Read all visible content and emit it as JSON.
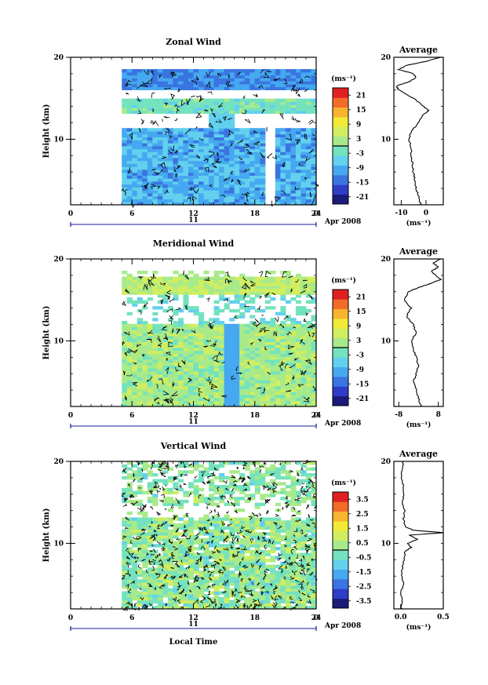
{
  "figure": {
    "panels": [
      {
        "title": "Zonal Wind",
        "ylabel": "Height (km)",
        "yticks": [
          "10",
          "20"
        ],
        "xticks": [
          "0",
          "6",
          "12",
          "18",
          "24",
          "0"
        ],
        "day_label": "11",
        "date_label": "Apr 2008",
        "colorbar": {
          "unit": "(ms⁻¹)",
          "labels": [
            "21",
            "15",
            "9",
            "3",
            "-3",
            "-9",
            "-15",
            "-21"
          ]
        },
        "profile": {
          "title": "Average",
          "xticks": [
            "-10",
            "0"
          ],
          "unit": "(ms⁻¹)",
          "yticks": [
            "10",
            "20"
          ]
        }
      },
      {
        "title": "Meridional Wind",
        "ylabel": "Height (km)",
        "yticks": [
          "10",
          "20"
        ],
        "xticks": [
          "0",
          "6",
          "12",
          "18",
          "24",
          "0"
        ],
        "day_label": "11",
        "date_label": "Apr 2008",
        "colorbar": {
          "unit": "(ms⁻¹)",
          "labels": [
            "21",
            "15",
            "9",
            "3",
            "-3",
            "-9",
            "-15",
            "-21"
          ]
        },
        "profile": {
          "title": "Average",
          "xticks": [
            "-8",
            "8"
          ],
          "unit": "(ms⁻¹)",
          "yticks": [
            "10",
            "20"
          ]
        }
      },
      {
        "title": "Vertical Wind",
        "ylabel": "Height (km)",
        "yticks": [
          "10",
          "20"
        ],
        "xticks": [
          "0",
          "6",
          "12",
          "18",
          "24",
          "0"
        ],
        "day_label": "11",
        "date_label": "Apr 2008",
        "xlabel": "Local Time",
        "colorbar": {
          "unit": "(ms⁻¹)",
          "labels": [
            "3.5",
            "2.5",
            "1.5",
            "0.5",
            "-0.5",
            "-1.5",
            "-2.5",
            "-3.5"
          ]
        },
        "profile": {
          "title": "Average",
          "xticks": [
            "0.0",
            "0.5"
          ],
          "unit": "(ms⁻¹)",
          "yticks": [
            "10",
            "20"
          ]
        }
      }
    ],
    "colors": {
      "scale": [
        "#1a1a7a",
        "#2e3cc8",
        "#3a74e0",
        "#46a8f0",
        "#62d0ee",
        "#74e2be",
        "#a8ea8a",
        "#d0ee60",
        "#f2ea36",
        "#f8b42e",
        "#f26c28",
        "#e02020"
      ],
      "no_data": "#ffffff"
    }
  },
  "chart_data": [
    {
      "type": "heatmap",
      "title": "Zonal Wind",
      "xlabel": "",
      "ylabel": "Height (km)",
      "x_unit": "local time (h)",
      "xlim": [
        0,
        24
      ],
      "ylim": [
        2,
        20
      ],
      "data_x_range": [
        5,
        24
      ],
      "data_y_range": [
        2,
        18.5
      ],
      "colorbar": {
        "unit": "(ms⁻¹)",
        "range": [
          -24,
          24
        ],
        "ticks": [
          21,
          15,
          9,
          3,
          -3,
          -9,
          -15,
          -21
        ]
      },
      "description_values": {
        "bands": [
          {
            "height_km": [
              16,
              18.5
            ],
            "value_ms": -12
          },
          {
            "height_km": [
              13,
              15
            ],
            "value_ms": -2
          },
          {
            "height_km": [
              2,
              11
            ],
            "value_ms": -9
          }
        ]
      },
      "profile": {
        "title": "Average",
        "x_unit": "(ms⁻¹)",
        "xlim": [
          -13,
          7
        ],
        "height_km": [
          2,
          3,
          4,
          5,
          6,
          7,
          8,
          9,
          10,
          11,
          12,
          13,
          13.5,
          14,
          15,
          16,
          16.5,
          17,
          17.5,
          18,
          18.5,
          19,
          19.5,
          20
        ],
        "values_ms": [
          -2,
          -3,
          -4,
          -4.5,
          -5,
          -5.5,
          -6,
          -6,
          -7,
          -6,
          -3,
          -1,
          1,
          -1,
          -5,
          -11,
          -12,
          -7,
          -4,
          -5,
          -11,
          -8,
          0,
          6
        ]
      }
    },
    {
      "type": "heatmap",
      "title": "Meridional Wind",
      "xlabel": "",
      "ylabel": "Height (km)",
      "x_unit": "local time (h)",
      "xlim": [
        0,
        24
      ],
      "ylim": [
        2,
        20
      ],
      "data_x_range": [
        5,
        24
      ],
      "data_y_range": [
        2,
        18.5
      ],
      "colorbar": {
        "unit": "(ms⁻¹)",
        "range": [
          -24,
          24
        ],
        "ticks": [
          21,
          15,
          9,
          3,
          -3,
          -9,
          -15,
          -21
        ]
      },
      "profile": {
        "title": "Average",
        "x_unit": "(ms⁻¹)",
        "xlim": [
          -10,
          10
        ],
        "height_km": [
          2,
          3,
          4,
          5,
          6,
          7,
          8,
          9,
          10,
          11,
          12,
          13,
          14,
          15,
          16,
          16.5,
          17,
          17.5,
          18,
          18.5,
          19,
          19.5,
          20
        ],
        "values_ms": [
          1,
          0,
          -1,
          -2,
          -1,
          0,
          -1,
          -2,
          -3,
          -1,
          -2,
          -5,
          -3,
          -6,
          -4,
          0,
          5,
          9,
          7,
          5,
          8,
          6,
          9
        ]
      }
    },
    {
      "type": "heatmap",
      "title": "Vertical Wind",
      "xlabel": "Local Time",
      "ylabel": "Height (km)",
      "x_unit": "local time (h)",
      "xlim": [
        0,
        24
      ],
      "ylim": [
        2,
        20
      ],
      "data_x_range": [
        5,
        24
      ],
      "data_y_range": [
        2,
        20
      ],
      "colorbar": {
        "unit": "(ms⁻¹)",
        "range": [
          -4,
          4
        ],
        "ticks": [
          3.5,
          2.5,
          1.5,
          0.5,
          -0.5,
          -1.5,
          -2.5,
          -3.5
        ]
      },
      "profile": {
        "title": "Average",
        "x_unit": "(ms⁻¹)",
        "xlim": [
          -0.08,
          0.5
        ],
        "height_km": [
          2,
          3,
          4,
          5,
          6,
          7,
          8,
          9,
          9.5,
          10,
          10.5,
          11,
          11.3,
          11.6,
          12,
          13,
          14,
          15,
          16,
          17,
          18,
          19,
          20
        ],
        "values_ms": [
          0.01,
          0.02,
          0.0,
          0.03,
          0.01,
          0.02,
          0.04,
          0.05,
          0.12,
          0.08,
          0.2,
          0.1,
          0.5,
          0.15,
          0.06,
          0.03,
          0.05,
          0.02,
          0.04,
          0.03,
          0.01,
          0.02,
          0.03
        ]
      }
    }
  ]
}
